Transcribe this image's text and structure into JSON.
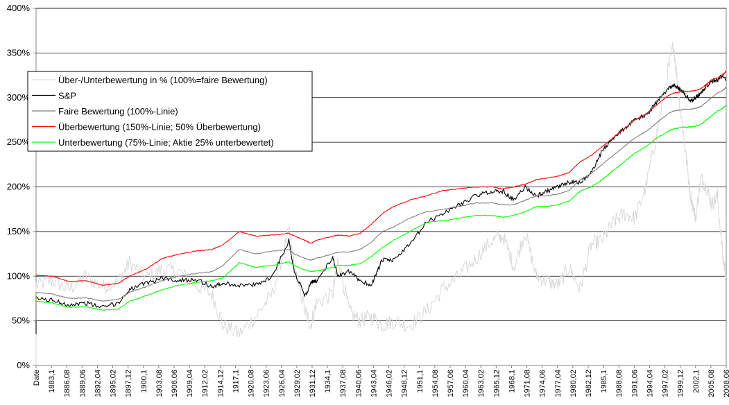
{
  "chart_data": {
    "type": "line",
    "title": "",
    "xlabel": "",
    "ylabel": "",
    "ylim": [
      0,
      400
    ],
    "y_ticks": [
      "0%",
      "50%",
      "100%",
      "150%",
      "200%",
      "250%",
      "300%",
      "350%",
      "400%"
    ],
    "y_tick_values": [
      0,
      50,
      100,
      150,
      200,
      250,
      300,
      350,
      400
    ],
    "grid": "horizontal",
    "legend_position": "top-left",
    "x_ticks": [
      "Date",
      "1883,1",
      "1886,08",
      "1889,06",
      "1892,04",
      "1895,02",
      "1897,12",
      "1900,1",
      "1903,08",
      "1906,06",
      "1909,04",
      "1912,02",
      "1914,12",
      "1917,1",
      "1920,08",
      "1923,06",
      "1926,04",
      "1929,02",
      "1931,12",
      "1934,1",
      "1937,08",
      "1940,06",
      "1943,04",
      "1946,02",
      "1948,12",
      "1951,1",
      "1954,08",
      "1957,06",
      "1960,04",
      "1963,02",
      "1965,12",
      "1968,1",
      "1971,08",
      "1974,06",
      "1977,04",
      "1980,02",
      "1982,12",
      "1985,1",
      "1988,08",
      "1991,06",
      "1994,04",
      "1997,02",
      "1999,12",
      "2002,1",
      "2005,08",
      "2008,06"
    ],
    "x": [
      1883,
      1886,
      1889,
      1892,
      1895,
      1898,
      1900,
      1903,
      1906,
      1909,
      1912,
      1915,
      1917,
      1920,
      1923,
      1926,
      1929,
      1930,
      1932,
      1933,
      1934,
      1937,
      1938,
      1940,
      1942,
      1944,
      1946,
      1948,
      1951,
      1954,
      1957,
      1960,
      1963,
      1966,
      1968,
      1970,
      1972,
      1974,
      1976,
      1978,
      1980,
      1982,
      1984,
      1986,
      1988,
      1990,
      1992,
      1994,
      1996,
      1998,
      1999,
      2000,
      2001,
      2002,
      2003,
      2004,
      2005,
      2006,
      2007,
      2008,
      2008.6
    ],
    "series": [
      {
        "name": "Über-/Unterbewertung in % (100%=faire Bewertung)",
        "color": "#d9d9d9",
        "values": [
          90,
          95,
          85,
          100,
          88,
          95,
          115,
          98,
          108,
          105,
          90,
          80,
          45,
          35,
          55,
          80,
          150,
          110,
          60,
          45,
          70,
          80,
          120,
          60,
          50,
          55,
          45,
          50,
          45,
          60,
          85,
          100,
          120,
          140,
          145,
          110,
          150,
          100,
          95,
          90,
          110,
          85,
          135,
          140,
          160,
          170,
          165,
          200,
          260,
          330,
          360,
          300,
          250,
          195,
          165,
          210,
          200,
          180,
          190,
          120,
          100
        ]
      },
      {
        "name": "S&P",
        "color": "#000000",
        "values": [
          75,
          73,
          68,
          70,
          65,
          70,
          85,
          92,
          98,
          95,
          97,
          88,
          92,
          90,
          90,
          100,
          140,
          105,
          78,
          92,
          95,
          120,
          100,
          105,
          95,
          90,
          118,
          118,
          135,
          160,
          170,
          180,
          190,
          195,
          195,
          185,
          200,
          190,
          195,
          200,
          205,
          205,
          215,
          240,
          255,
          265,
          275,
          280,
          295,
          310,
          315,
          310,
          305,
          296,
          300,
          305,
          313,
          318,
          320,
          325,
          320
        ]
      },
      {
        "name": "Faire Bewertung (100%-Linie)",
        "color": "#808080",
        "values": [
          82,
          80,
          75,
          76,
          72,
          74,
          82,
          88,
          95,
          100,
          103,
          105,
          112,
          130,
          125,
          128,
          130,
          125,
          120,
          118,
          120,
          125,
          127,
          127,
          130,
          138,
          150,
          155,
          165,
          172,
          175,
          178,
          182,
          182,
          180,
          180,
          185,
          190,
          190,
          192,
          196,
          208,
          215,
          225,
          235,
          245,
          255,
          262,
          272,
          282,
          285,
          286,
          287,
          287,
          288,
          290,
          295,
          300,
          305,
          308,
          312
        ]
      },
      {
        "name": "Überbewertung (150%-Linie; 50% Überbewertung)",
        "color": "#ff0000",
        "values": [
          101,
          100,
          94,
          95,
          90,
          92,
          100,
          108,
          120,
          125,
          128,
          130,
          135,
          150,
          145,
          146,
          148,
          145,
          140,
          137,
          140,
          145,
          146,
          145,
          148,
          158,
          170,
          178,
          185,
          190,
          196,
          198,
          200,
          200,
          198,
          200,
          203,
          208,
          210,
          212,
          216,
          228,
          235,
          245,
          255,
          265,
          275,
          282,
          292,
          302,
          305,
          306,
          307,
          307,
          308,
          310,
          315,
          320,
          322,
          325,
          330
        ]
      },
      {
        "name": "Unterbewertung (75%-Linie; Aktie 25% unterbewertet)",
        "color": "#00ff00",
        "values": [
          72,
          70,
          65,
          66,
          62,
          63,
          72,
          78,
          85,
          90,
          93,
          95,
          98,
          115,
          110,
          112,
          116,
          112,
          107,
          105,
          106,
          110,
          112,
          112,
          114,
          122,
          132,
          140,
          150,
          160,
          162,
          165,
          168,
          168,
          166,
          168,
          172,
          178,
          178,
          180,
          184,
          195,
          200,
          208,
          218,
          228,
          238,
          245,
          255,
          262,
          265,
          266,
          267,
          267,
          268,
          270,
          275,
          280,
          285,
          288,
          292
        ]
      }
    ]
  }
}
